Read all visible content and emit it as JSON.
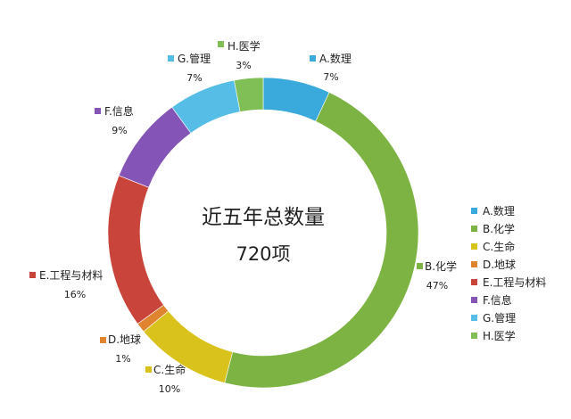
{
  "chart_data": {
    "type": "pie",
    "style": "donut",
    "center_title": "近五年总数量",
    "center_value": "720项",
    "slices": [
      {
        "label": "A.数理",
        "value": 7,
        "value_label": "7%",
        "color": "#3aa9db"
      },
      {
        "label": "B.化学",
        "value": 47,
        "value_label": "47%",
        "color": "#7cb342"
      },
      {
        "label": "C.生命",
        "value": 10,
        "value_label": "10%",
        "color": "#d9c21b"
      },
      {
        "label": "D.地球",
        "value": 1,
        "value_label": "1%",
        "color": "#e0842f"
      },
      {
        "label": "E.工程与材料",
        "value": 16,
        "value_label": "16%",
        "color": "#c9453c"
      },
      {
        "label": "F.信息",
        "value": 9,
        "value_label": "9%",
        "color": "#8454b6"
      },
      {
        "label": "G.管理",
        "value": 7,
        "value_label": "7%",
        "color": "#56bde6"
      },
      {
        "label": "H.医学",
        "value": 3,
        "value_label": "3%",
        "color": "#80bf55"
      }
    ],
    "legend": "right"
  }
}
